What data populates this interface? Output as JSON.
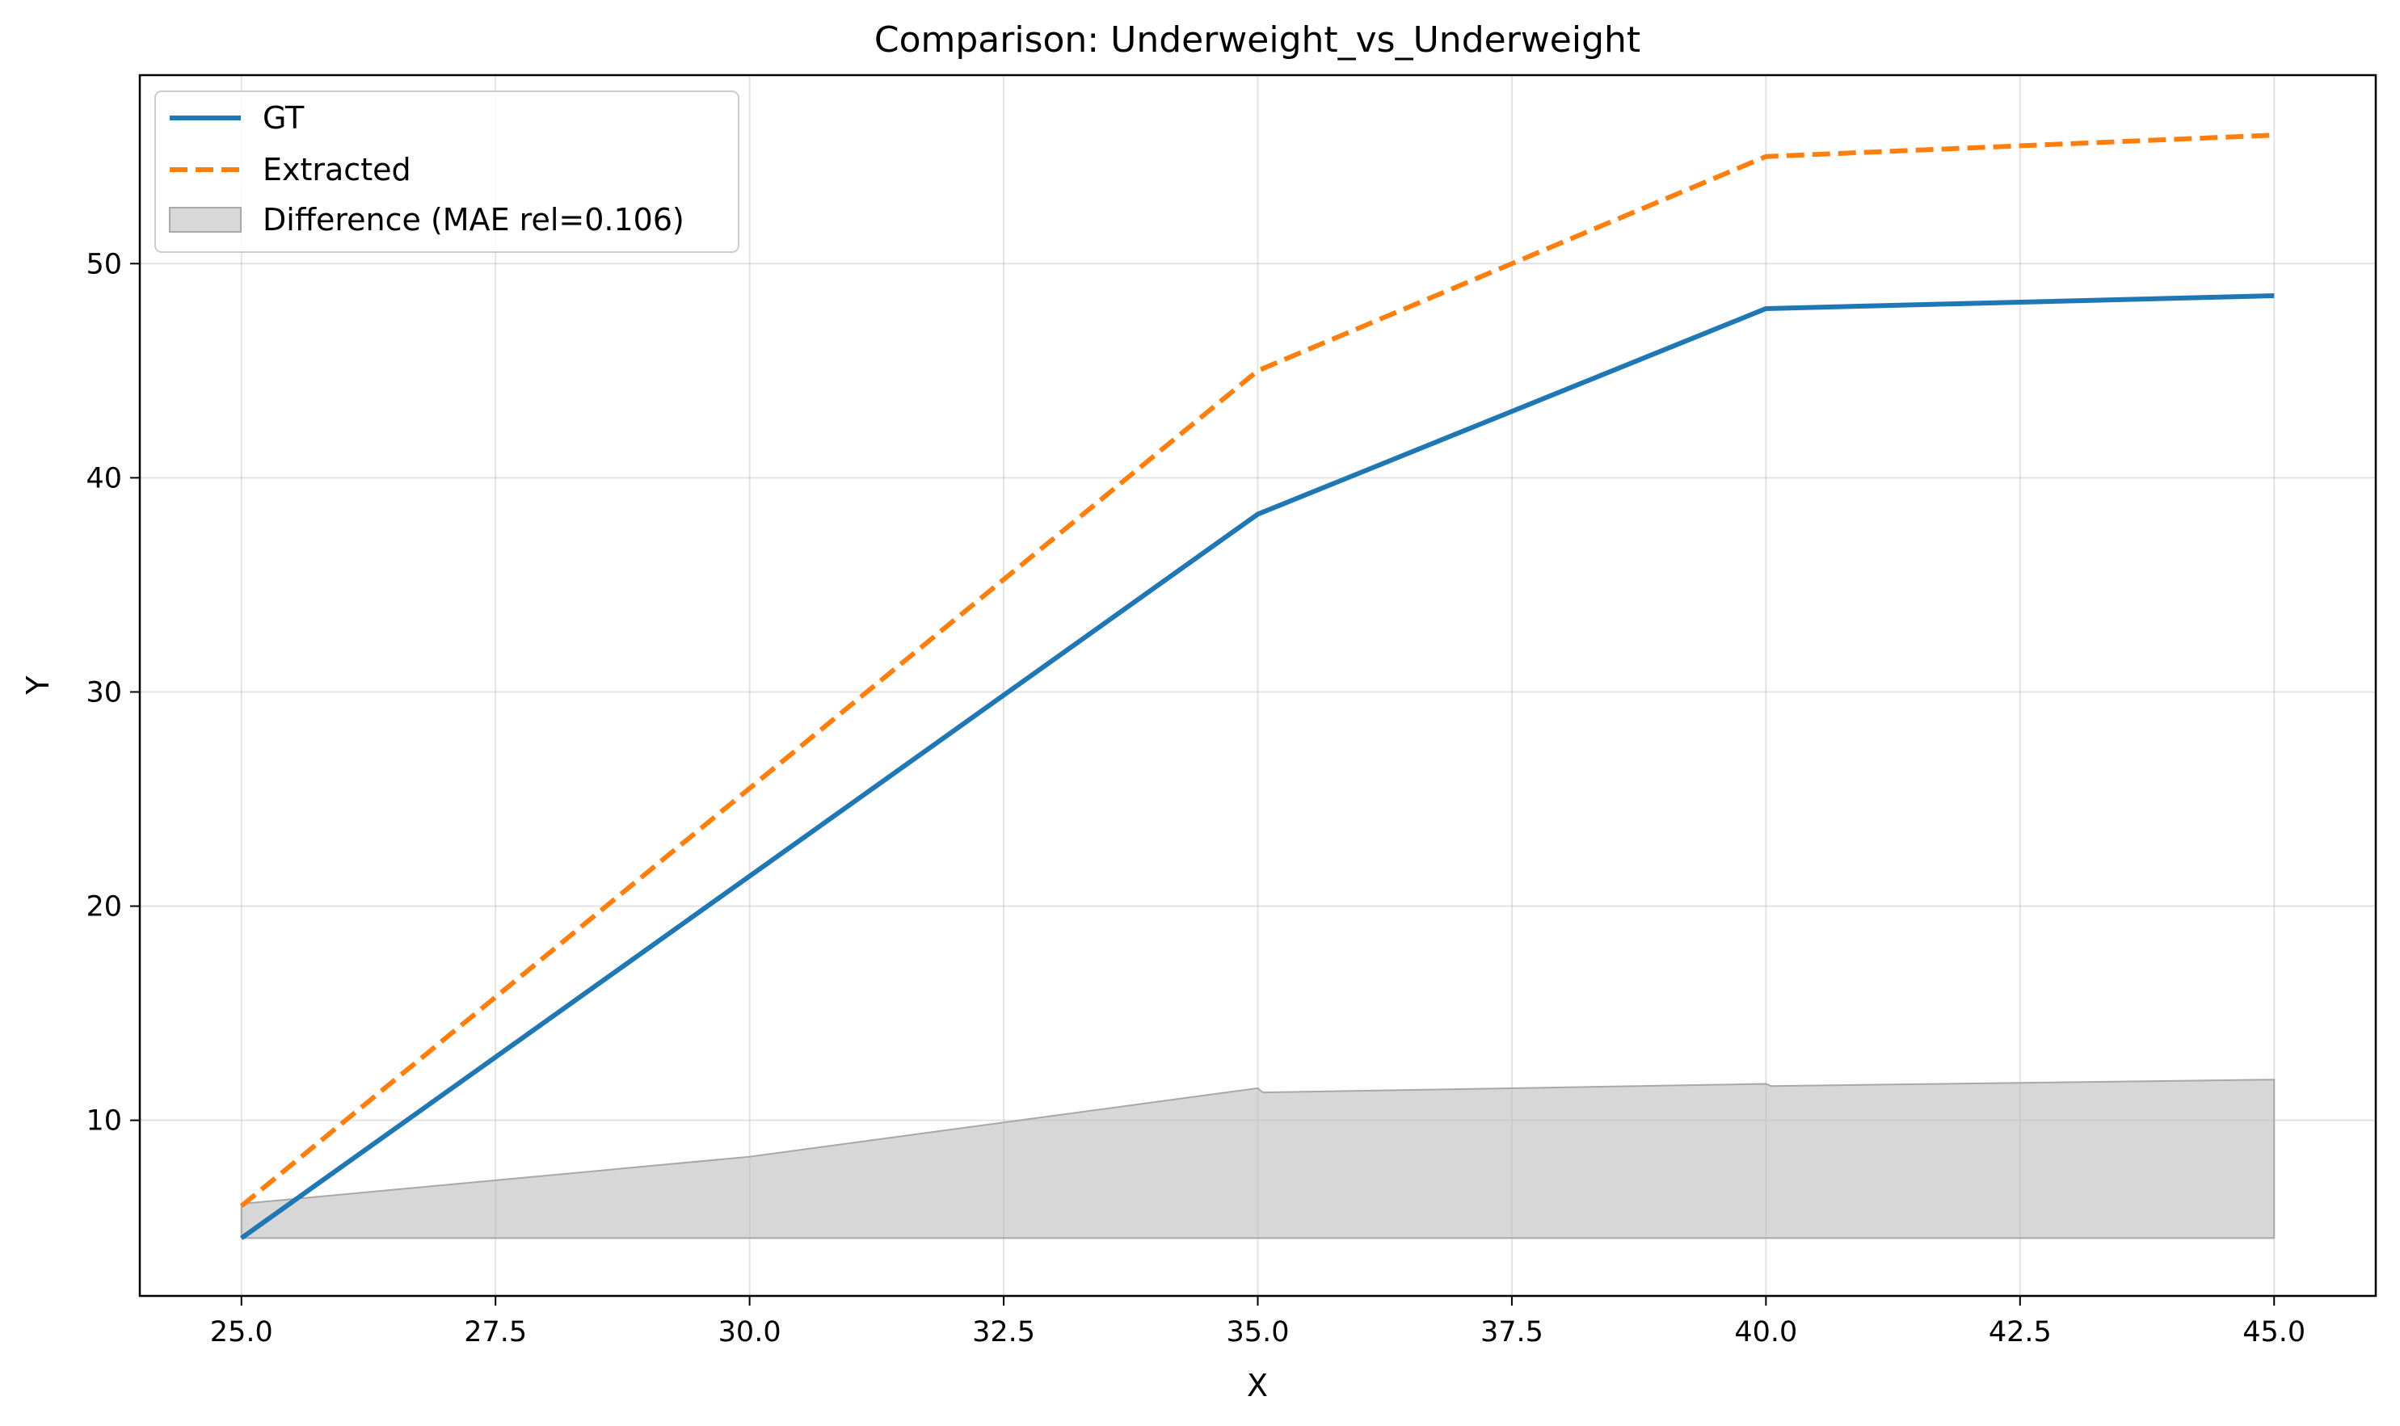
{
  "chart_data": {
    "type": "line",
    "title": "Comparison: Underweight_vs_Underweight",
    "xlabel": "X",
    "ylabel": "Y",
    "xlim": [
      24.0,
      46.0
    ],
    "ylim": [
      1.8,
      58.8
    ],
    "x_ticks": [
      25.0,
      27.5,
      30.0,
      32.5,
      35.0,
      37.5,
      40.0,
      42.5,
      45.0
    ],
    "x_tick_labels": [
      "25.0",
      "27.5",
      "30.0",
      "32.5",
      "35.0",
      "37.5",
      "40.0",
      "42.5",
      "45.0"
    ],
    "y_ticks": [
      10,
      20,
      30,
      40,
      50
    ],
    "y_tick_labels": [
      "10",
      "20",
      "30",
      "40",
      "50"
    ],
    "grid": true,
    "legend_position": "top-left",
    "series": [
      {
        "name": "GT",
        "style": "solid",
        "color": "#1f77b4",
        "x": [
          25.0,
          35.0,
          40.0,
          45.0
        ],
        "y": [
          4.5,
          38.3,
          47.9,
          48.5
        ]
      },
      {
        "name": "Extracted",
        "style": "dashed",
        "color": "#ff7f0e",
        "x": [
          25.0,
          35.0,
          40.0,
          45.0
        ],
        "y": [
          6.0,
          45.0,
          55.0,
          56.0
        ]
      }
    ],
    "difference_band": {
      "name": "Difference (MAE rel=0.106)",
      "color": "#bfbfbf",
      "x": [
        25.0,
        30.0,
        35.0,
        35.05,
        40.0,
        40.05,
        45.0
      ],
      "lower": [
        4.5,
        4.5,
        4.5,
        4.5,
        4.5,
        4.5,
        4.5
      ],
      "upper": [
        6.1,
        8.3,
        11.5,
        11.3,
        11.7,
        11.6,
        11.9
      ]
    }
  }
}
